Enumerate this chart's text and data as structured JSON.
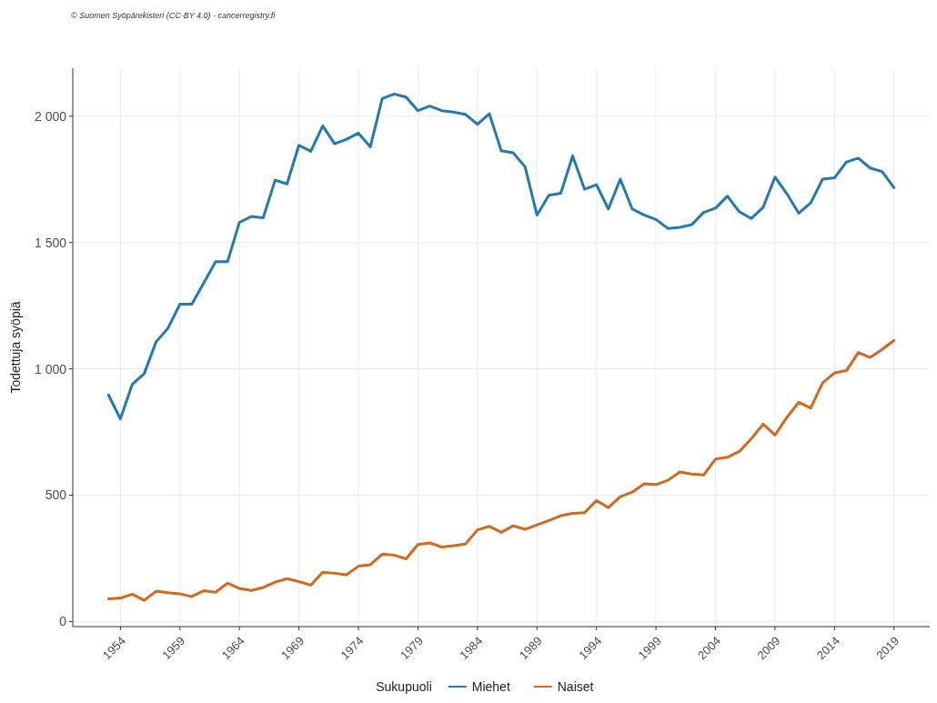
{
  "chart_data": {
    "type": "line",
    "annotations": [
      "© Suomen Syöpärekisteri (CC-BY 4.0) - cancerregistry.fi"
    ],
    "ylabel": "Todettuja syöpiä",
    "legend_title": "Sukupuoli",
    "x": [
      1953,
      1954,
      1955,
      1956,
      1957,
      1958,
      1959,
      1960,
      1961,
      1962,
      1963,
      1964,
      1965,
      1966,
      1967,
      1968,
      1969,
      1970,
      1971,
      1972,
      1973,
      1974,
      1975,
      1976,
      1977,
      1978,
      1979,
      1980,
      1981,
      1982,
      1983,
      1984,
      1985,
      1986,
      1987,
      1988,
      1989,
      1990,
      1991,
      1992,
      1993,
      1994,
      1995,
      1996,
      1997,
      1998,
      1999,
      2000,
      2001,
      2002,
      2003,
      2004,
      2005,
      2006,
      2007,
      2008,
      2009,
      2010,
      2011,
      2012,
      2013,
      2014,
      2015,
      2016,
      2017,
      2018,
      2019
    ],
    "series": [
      {
        "name": "Miehet",
        "color": "#2479b3",
        "values": [
          897,
          802,
          939,
          981,
          1107,
          1161,
          1256,
          1256,
          1340,
          1424,
          1424,
          1580,
          1603,
          1598,
          1747,
          1732,
          1885,
          1861,
          1962,
          1891,
          1909,
          1933,
          1879,
          2070,
          2088,
          2076,
          2022,
          2040,
          2022,
          2016,
          2007,
          1968,
          2010,
          1863,
          1855,
          1800,
          1609,
          1687,
          1695,
          1843,
          1711,
          1729,
          1633,
          1751,
          1633,
          1609,
          1591,
          1556,
          1560,
          1571,
          1619,
          1636,
          1684,
          1622,
          1595,
          1639,
          1759,
          1693,
          1616,
          1657,
          1751,
          1756,
          1819,
          1834,
          1795,
          1781,
          1717
        ]
      },
      {
        "name": "Naiset",
        "color": "#d2691e",
        "values": [
          90,
          93,
          108,
          84,
          120,
          114,
          110,
          99,
          122,
          116,
          152,
          131,
          123,
          135,
          156,
          170,
          158,
          144,
          195,
          191,
          185,
          219,
          225,
          267,
          263,
          248,
          305,
          311,
          295,
          300,
          307,
          363,
          377,
          353,
          379,
          365,
          383,
          400,
          419,
          428,
          431,
          479,
          451,
          494,
          512,
          545,
          542,
          559,
          592,
          584,
          580,
          643,
          650,
          673,
          723,
          781,
          738,
          808,
          868,
          845,
          945,
          984,
          993,
          1065,
          1045,
          1077,
          1113
        ]
      }
    ],
    "xlim": [
      1950,
      2022
    ],
    "xticks": [
      1954,
      1959,
      1964,
      1969,
      1974,
      1979,
      1984,
      1989,
      1994,
      1999,
      2004,
      2009,
      2014,
      2019
    ],
    "ylim": [
      -20,
      2190
    ],
    "yticks": [
      0,
      {
        "value": 500,
        "label": "500"
      },
      {
        "value": 1000,
        "label": "1 000"
      },
      {
        "value": 1500,
        "label": "1 500"
      },
      {
        "value": 2000,
        "label": "2 000"
      }
    ],
    "grid": true,
    "legend": "bottom",
    "line_style": "solid"
  }
}
